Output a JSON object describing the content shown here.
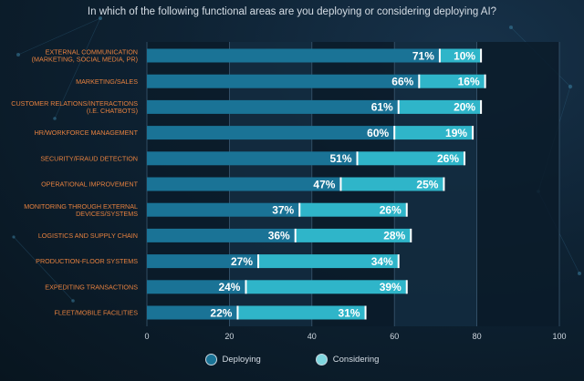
{
  "chart_data": {
    "type": "bar",
    "orientation": "horizontal",
    "stacked": true,
    "title": "In which of the following functional areas are you deploying or considering deploying AI?",
    "categories": [
      "EXTERNAL COMMUNICATION (MARKETING, SOCIAL MEDIA, PR)",
      "MARKETING/SALES",
      "CUSTOMER RELATIONS/INTERACTIONS (I.E. CHATBOTS)",
      "HR/WORKFORCE MANAGEMENT",
      "SECURITY/FRAUD DETECTION",
      "OPERATIONAL IMPROVEMENT",
      "MONITORING THROUGH EXTERNAL DEVICES/SYSTEMS",
      "LOGISTICS AND SUPPLY CHAIN",
      "PRODUCTION-FLOOR SYSTEMS",
      "EXPEDITING TRANSACTIONS",
      "FLEET/MOBILE FACILITIES"
    ],
    "category_lines": [
      [
        "EXTERNAL COMMUNICATION",
        "(MARKETING, SOCIAL MEDIA, PR)"
      ],
      [
        "MARKETING/SALES"
      ],
      [
        "CUSTOMER RELATIONS/INTERACTIONS",
        "(I.E. CHATBOTS)"
      ],
      [
        "HR/WORKFORCE MANAGEMENT"
      ],
      [
        "SECURITY/FRAUD DETECTION"
      ],
      [
        "OPERATIONAL IMPROVEMENT"
      ],
      [
        "MONITORING THROUGH EXTERNAL",
        "DEVICES/SYSTEMS"
      ],
      [
        "LOGISTICS AND SUPPLY CHAIN"
      ],
      [
        "PRODUCTION-FLOOR SYSTEMS"
      ],
      [
        "EXPEDITING TRANSACTIONS"
      ],
      [
        "FLEET/MOBILE FACILITIES"
      ]
    ],
    "series": [
      {
        "name": "Deploying",
        "values": [
          71,
          66,
          61,
          60,
          51,
          47,
          37,
          36,
          27,
          24,
          22
        ],
        "color": "#1a7396"
      },
      {
        "name": "Considering",
        "values": [
          10,
          16,
          20,
          19,
          26,
          25,
          26,
          28,
          34,
          39,
          31
        ],
        "color": "#2fb5c9"
      }
    ],
    "xlim": [
      0,
      100
    ],
    "xticks": [
      0,
      20,
      40,
      60,
      80,
      100
    ],
    "value_suffix": "%",
    "grid": true,
    "legend_position": "bottom"
  }
}
